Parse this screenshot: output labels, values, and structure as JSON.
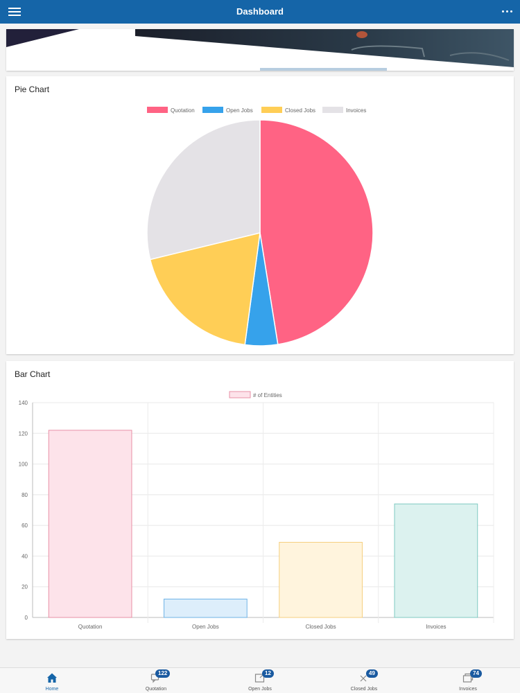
{
  "header": {
    "title": "Dashboard",
    "menu_icon": "hamburger-menu-icon",
    "more_icon": "more-options-icon"
  },
  "banner": {
    "description": "vehicle banner image"
  },
  "pie_card": {
    "title": "Pie Chart"
  },
  "bar_card": {
    "title": "Bar Chart"
  },
  "chart_data": [
    {
      "type": "pie",
      "title": "",
      "labels": [
        "Quotation",
        "Open Jobs",
        "Closed Jobs",
        "Invoices"
      ],
      "values": [
        122,
        12,
        49,
        74
      ],
      "colors": [
        "#ff6384",
        "#36a2eb",
        "#ffce56",
        "#e4e2e6"
      ],
      "legend": "top"
    },
    {
      "type": "bar",
      "title": "",
      "categories": [
        "Quotation",
        "Open Jobs",
        "Closed Jobs",
        "Invoices"
      ],
      "series": [
        {
          "name": "# of Entities",
          "values": [
            122,
            12,
            49,
            74
          ]
        }
      ],
      "fill_colors": [
        "#fde3ea",
        "#ddeefb",
        "#fff4dd",
        "#dcf2ef"
      ],
      "border_colors": [
        "#e88fa6",
        "#6fb3e6",
        "#f5cf7f",
        "#7fcac2"
      ],
      "legend_fill": "#fde3ea",
      "legend_border": "#e88fa6",
      "ylim": [
        0,
        140
      ],
      "yticks": [
        "0",
        "20",
        "40",
        "60",
        "80",
        "100",
        "120",
        "140"
      ],
      "grid": true,
      "legend": "top"
    }
  ],
  "tabs": [
    {
      "label": "Home",
      "icon": "home-icon",
      "badge": "",
      "active": true
    },
    {
      "label": "Quotation",
      "icon": "quotation-icon",
      "badge": "122",
      "active": false
    },
    {
      "label": "Open Jobs",
      "icon": "open-jobs-icon",
      "badge": "12",
      "active": false
    },
    {
      "label": "Closed Jobs",
      "icon": "closed-jobs-icon",
      "badge": "49",
      "active": false
    },
    {
      "label": "Invoices",
      "icon": "invoices-icon",
      "badge": "74",
      "active": false
    }
  ],
  "colors": {
    "primary": "#1565a8",
    "badge": "#1a5aa0"
  }
}
